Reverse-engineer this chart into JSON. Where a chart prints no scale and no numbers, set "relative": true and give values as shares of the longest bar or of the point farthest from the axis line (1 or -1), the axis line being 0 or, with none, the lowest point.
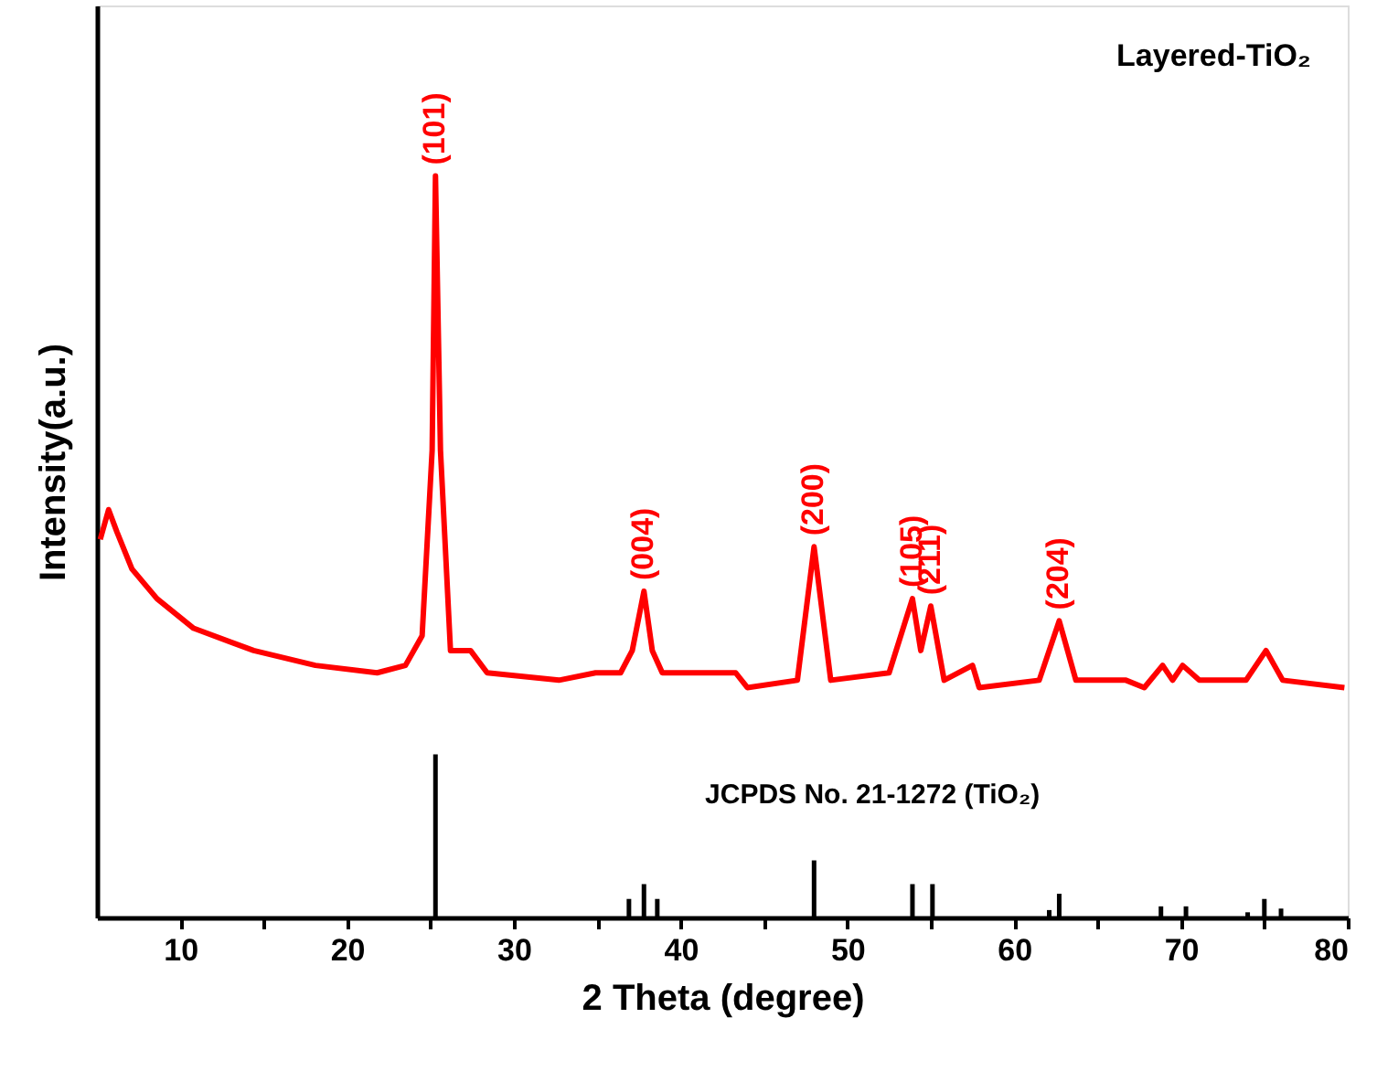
{
  "chart_data": {
    "type": "line",
    "title": "Layered-TiO₂",
    "relative": true,
    "xlabel": "2 Theta (degree)",
    "ylabel": "Intensity(a.u.)",
    "xlim": [
      5,
      80
    ],
    "xticks": [
      10,
      {
        "value": 15,
        "label": null
      },
      20,
      {
        "value": 25,
        "label": null
      },
      30,
      {
        "value": 35,
        "label": null
      },
      40,
      {
        "value": 45,
        "label": null
      },
      50,
      {
        "value": 55,
        "label": null
      },
      60,
      {
        "value": 65,
        "label": null
      },
      70,
      {
        "value": 75,
        "label": null
      },
      80
    ],
    "tick_labels": "x",
    "series": [
      {
        "color": "#ff0000",
        "x": [
          5.2,
          5.7,
          6.2,
          7.1,
          8.6,
          10.8,
          14.4,
          18.1,
          21.8,
          23.5,
          24.5,
          25.1,
          25.3,
          25.6,
          26.2,
          27.4,
          28.4,
          32.7,
          34.9,
          36.4,
          37.1,
          37.8,
          38.3,
          38.9,
          41.8,
          43.3,
          44.0,
          47.0,
          48.0,
          49.0,
          52.5,
          53.9,
          54.4,
          55.0,
          55.8,
          57.5,
          57.9,
          61.5,
          62.7,
          63.7,
          66.7,
          67.8,
          68.9,
          69.5,
          70.1,
          71.1,
          73.9,
          75.1,
          76.1,
          79.8
        ],
        "values": [
          0.51,
          0.55,
          0.52,
          0.47,
          0.43,
          0.39,
          0.36,
          0.34,
          0.33,
          0.34,
          0.38,
          0.63,
          1.0,
          0.63,
          0.36,
          0.36,
          0.33,
          0.32,
          0.33,
          0.33,
          0.36,
          0.44,
          0.36,
          0.33,
          0.33,
          0.33,
          0.31,
          0.32,
          0.5,
          0.32,
          0.33,
          0.43,
          0.36,
          0.42,
          0.32,
          0.34,
          0.31,
          0.32,
          0.4,
          0.32,
          0.32,
          0.31,
          0.34,
          0.32,
          0.34,
          0.32,
          0.32,
          0.36,
          0.32,
          0.31
        ]
      },
      {
        "name": "JCPDS No. 21-1272 (TiO₂)",
        "type": "bar",
        "color": "#000000",
        "x": [
          25.3,
          36.9,
          37.8,
          38.6,
          48.0,
          53.9,
          55.1,
          62.1,
          62.7,
          68.8,
          70.3,
          74.0,
          75.0,
          76.0
        ],
        "values": [
          0.22,
          0.025,
          0.045,
          0.025,
          0.077,
          0.045,
          0.045,
          0.01,
          0.032,
          0.015,
          0.015,
          0.007,
          0.025,
          0.012
        ]
      }
    ],
    "annotations": [
      {
        "text": "(101)",
        "x": 25.3,
        "y": 1.0
      },
      {
        "text": "(004)",
        "x": 37.8,
        "y": 0.44
      },
      {
        "text": "(200)",
        "x": 48.0,
        "y": 0.5
      },
      {
        "text": "(105)",
        "x": 53.9,
        "y": 0.43
      },
      {
        "text": "(211)",
        "x": 55.0,
        "y": 0.42
      },
      {
        "text": "(204)",
        "x": 62.7,
        "y": 0.4
      }
    ]
  }
}
